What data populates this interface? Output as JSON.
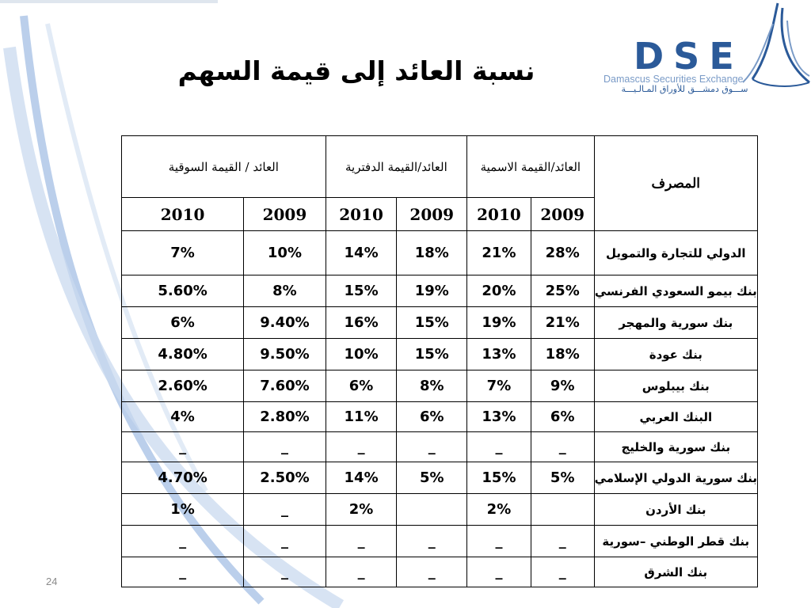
{
  "slide": {
    "title": "نسبة العائد إلى قيمة السهم",
    "page_number": "24"
  },
  "logo": {
    "letters": "DSE",
    "english": "Damascus Securities Exchange",
    "arabic": "ســـوق دمشـــق للأوراق المـالـيـــة"
  },
  "colors": {
    "brand_blue": "#2b5a99",
    "light_blue": "#7a9bc7",
    "decor_blue": "#aac3e6"
  },
  "table": {
    "bank_header": "المصرف",
    "groups": [
      "العائد/القيمة الاسمية",
      "العائد/القيمة الدفترية",
      "العائد / القيمة السوقية"
    ],
    "years": [
      "2009",
      "2010",
      "2009",
      "2010",
      "2009",
      "2010"
    ],
    "rows": [
      {
        "bank": "الدولي للتجارة والتمويل",
        "values": [
          "28%",
          "21%",
          "18%",
          "14%",
          "10%",
          "7%"
        ]
      },
      {
        "bank": "بنك بيمو السعودي الفرنسي",
        "values": [
          "25%",
          "20%",
          "19%",
          "15%",
          "8%",
          "5.60%"
        ]
      },
      {
        "bank": "بنك سورية والمهجر",
        "values": [
          "21%",
          "19%",
          "15%",
          "16%",
          "9.40%",
          "6%"
        ]
      },
      {
        "bank": "بنك عودة",
        "values": [
          "18%",
          "13%",
          "15%",
          "10%",
          "9.50%",
          "4.80%"
        ]
      },
      {
        "bank": "بنك بيبلوس",
        "values": [
          "9%",
          "7%",
          "8%",
          "6%",
          "7.60%",
          "2.60%"
        ]
      },
      {
        "bank": "البنك العربي",
        "values": [
          "6%",
          "13%",
          "6%",
          "11%",
          "2.80%",
          "4%"
        ]
      },
      {
        "bank": "بنك سورية والخليج",
        "values": [
          "_",
          "_",
          "_",
          "_",
          "_",
          "_"
        ]
      },
      {
        "bank": "بنك سورية الدولي الإسلامي",
        "values": [
          "5%",
          "15%",
          "5%",
          "14%",
          "2.50%",
          "4.70%"
        ]
      },
      {
        "bank": "بنك الأردن",
        "values": [
          "",
          "2%",
          "",
          "2%",
          "_",
          "1%"
        ]
      },
      {
        "bank": "بنك قطر الوطني –سورية",
        "values": [
          "_",
          "_",
          "_",
          "_",
          "_",
          "_"
        ]
      },
      {
        "bank": "بنك الشرق",
        "values": [
          "_",
          "_",
          "_",
          "_",
          "_",
          "_"
        ]
      }
    ]
  }
}
